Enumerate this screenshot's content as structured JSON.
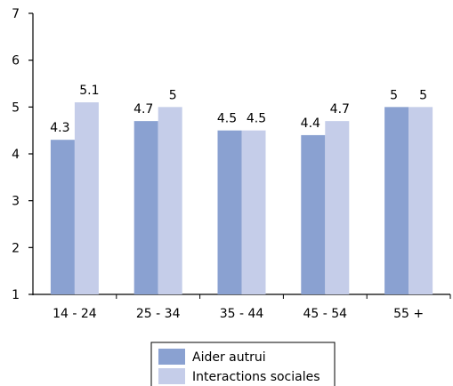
{
  "chart_data": {
    "type": "bar",
    "categories": [
      "14 - 24",
      "25 - 34",
      "35 - 44",
      "45 - 54",
      "55 +"
    ],
    "series": [
      {
        "name": "Aider autrui",
        "values": [
          4.3,
          4.7,
          4.5,
          4.4,
          5
        ],
        "labels": [
          "4.3",
          "4.7",
          "4.5",
          "4.4",
          "5"
        ],
        "color": "#8aa1d1"
      },
      {
        "name": "Interactions sociales",
        "values": [
          5.1,
          5,
          4.5,
          4.7,
          5
        ],
        "labels": [
          "5.1",
          "5",
          "4.5",
          "4.7",
          "5"
        ],
        "color": "#c5cde9"
      }
    ],
    "yticks": [
      "1",
      "2",
      "3",
      "4",
      "5",
      "6",
      "7"
    ],
    "ylim": [
      1,
      7
    ],
    "xlabel": "",
    "ylabel": "",
    "grid": false,
    "legend_position": "bottom-center"
  }
}
